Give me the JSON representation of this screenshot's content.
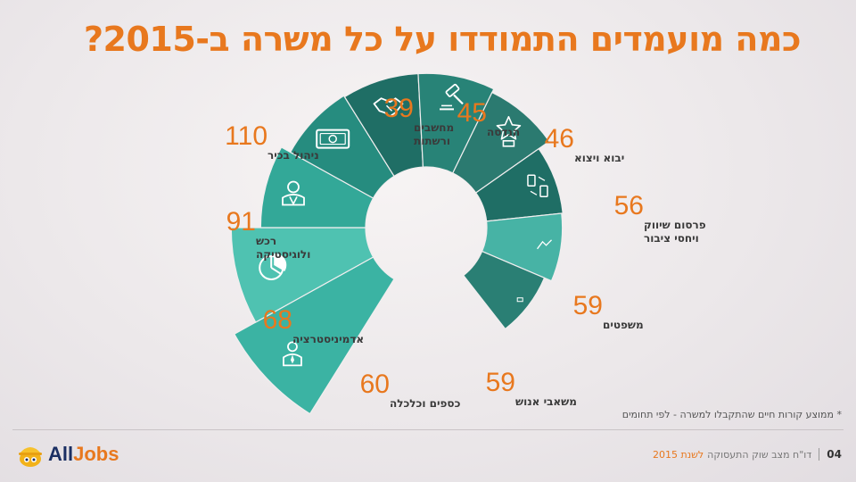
{
  "title": "כמה מועמדים התמודדו על כל משרה ב-2015?",
  "footnote": "* ממוצע קורות חיים שהתקבלו למשרה - לפי תחומים",
  "footer": {
    "page_number": "04",
    "report_label": "דו\"ח מצב שוק התעסוקה",
    "report_year": "לשנת 2015",
    "logo_all": "All",
    "logo_jobs": "Jobs"
  },
  "chart_data": {
    "type": "pie",
    "categories": [
      "ניהול בכיר",
      "רכש ולוגיסטיקה",
      "אדמיניסטרציה",
      "כספים וכלכלה",
      "משאבי אנוש",
      "משפטים",
      "פרסום שיווק ויחסי ציבור",
      "יבוא ויצוא",
      "הנדסה",
      "מחשבים ורשתות"
    ],
    "values": [
      110,
      91,
      68,
      60,
      59,
      59,
      56,
      46,
      45,
      39
    ],
    "labels": [
      {
        "value": "110",
        "lines": [
          "ניהול בכיר"
        ],
        "icon": "executive-icon"
      },
      {
        "value": "91",
        "lines": [
          "רכש",
          "ולוגיסטיקה"
        ],
        "icon": "pie-chart-icon"
      },
      {
        "value": "68",
        "lines": [
          "אדמיניסטרציה"
        ],
        "icon": "secretary-icon"
      },
      {
        "value": "60",
        "lines": [
          "כספים וכלכלה"
        ],
        "icon": "banknote-icon"
      },
      {
        "value": "59",
        "lines": [
          "משאבי אנוש"
        ],
        "icon": "handshake-icon"
      },
      {
        "value": "59",
        "lines": [
          "משפטים"
        ],
        "icon": "gavel-icon"
      },
      {
        "value": "56",
        "lines": [
          "פרסום שיווק",
          "ויחסי ציבור"
        ],
        "icon": "trophy-star-icon"
      },
      {
        "value": "46",
        "lines": [
          "יבוא ויצוא"
        ],
        "icon": "exchange-icon"
      },
      {
        "value": "45",
        "lines": [
          "הנדסה"
        ],
        "icon": "tools-icon"
      },
      {
        "value": "39",
        "lines": [
          "מחשבים",
          "ורשתות"
        ],
        "icon": "computer-icon"
      }
    ],
    "colors": {
      "value": "#e8781e",
      "label": "#3a3a3a",
      "slices": [
        "#3bb3a3",
        "#4fc2b1",
        "#33a898",
        "#268c7f",
        "#1f6e65",
        "#288377",
        "#2b7a70",
        "#1f6e65",
        "#47b3a5",
        "#2a7f74"
      ]
    }
  }
}
